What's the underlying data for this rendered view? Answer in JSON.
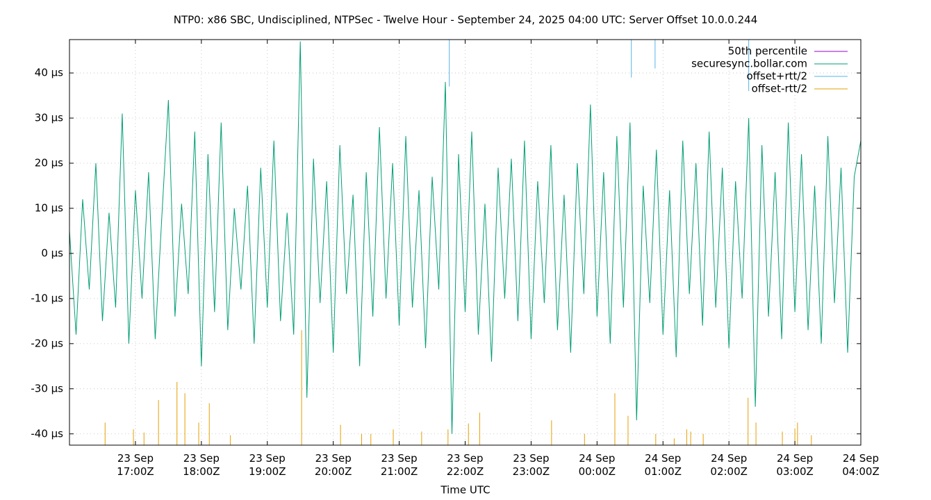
{
  "chart_data": {
    "type": "line",
    "title": "NTP0: x86 SBC, Undisciplined, NTPSec - Twelve Hour - September 24, 2025 04:00 UTC: Server Offset 10.0.0.244",
    "xlabel": "Time UTC",
    "xlim": [
      16,
      28
    ],
    "xticks": [
      {
        "value": 17,
        "label": [
          "23 Sep",
          "17:00Z"
        ]
      },
      {
        "value": 18,
        "label": [
          "23 Sep",
          "18:00Z"
        ]
      },
      {
        "value": 19,
        "label": [
          "23 Sep",
          "19:00Z"
        ]
      },
      {
        "value": 20,
        "label": [
          "23 Sep",
          "20:00Z"
        ]
      },
      {
        "value": 21,
        "label": [
          "23 Sep",
          "21:00Z"
        ]
      },
      {
        "value": 22,
        "label": [
          "23 Sep",
          "22:00Z"
        ]
      },
      {
        "value": 23,
        "label": [
          "23 Sep",
          "23:00Z"
        ]
      },
      {
        "value": 24,
        "label": [
          "24 Sep",
          "00:00Z"
        ]
      },
      {
        "value": 25,
        "label": [
          "24 Sep",
          "01:00Z"
        ]
      },
      {
        "value": 26,
        "label": [
          "24 Sep",
          "02:00Z"
        ]
      },
      {
        "value": 27,
        "label": [
          "24 Sep",
          "03:00Z"
        ]
      },
      {
        "value": 28,
        "label": [
          "24 Sep",
          "04:00Z"
        ]
      }
    ],
    "ylim": [
      -42.5,
      47.4
    ],
    "yticks": [
      {
        "value": -40,
        "label": "-40 µs"
      },
      {
        "value": -30,
        "label": "-30 µs"
      },
      {
        "value": -20,
        "label": "-20 µs"
      },
      {
        "value": -10,
        "label": "-10 µs"
      },
      {
        "value": 0,
        "label": "0 µs"
      },
      {
        "value": 10,
        "label": "10 µs"
      },
      {
        "value": 20,
        "label": "20 µs"
      },
      {
        "value": 30,
        "label": "30 µs"
      },
      {
        "value": 40,
        "label": "40 µs"
      }
    ],
    "grid": true,
    "legend": "top-right",
    "series": [
      {
        "name": "50th percentile",
        "color": "#9400d3"
      },
      {
        "name": "securesync.bollar.com",
        "color": "#009e73",
        "style": "line",
        "x": [
          16.0,
          16.1,
          16.2,
          16.3,
          16.4,
          16.5,
          16.6,
          16.7,
          16.8,
          16.9,
          17.0,
          17.1,
          17.2,
          17.3,
          17.4,
          17.5,
          17.6,
          17.7,
          17.8,
          17.9,
          18.0,
          18.1,
          18.2,
          18.3,
          18.4,
          18.5,
          18.6,
          18.7,
          18.8,
          18.9,
          19.0,
          19.1,
          19.2,
          19.3,
          19.4,
          19.5,
          19.6,
          19.7,
          19.8,
          19.9,
          20.0,
          20.1,
          20.2,
          20.3,
          20.4,
          20.5,
          20.6,
          20.7,
          20.8,
          20.9,
          21.0,
          21.1,
          21.2,
          21.3,
          21.4,
          21.5,
          21.6,
          21.7,
          21.8,
          21.9,
          22.0,
          22.1,
          22.2,
          22.3,
          22.4,
          22.5,
          22.6,
          22.7,
          22.8,
          22.9,
          23.0,
          23.1,
          23.2,
          23.3,
          23.4,
          23.5,
          23.6,
          23.7,
          23.8,
          23.9,
          24.0,
          24.1,
          24.2,
          24.3,
          24.4,
          24.5,
          24.6,
          24.7,
          24.8,
          24.9,
          25.0,
          25.1,
          25.2,
          25.3,
          25.4,
          25.5,
          25.6,
          25.7,
          25.8,
          25.9,
          26.0,
          26.1,
          26.2,
          26.3,
          26.4,
          26.5,
          26.6,
          26.7,
          26.8,
          26.9,
          27.0,
          27.1,
          27.2,
          27.3,
          27.4,
          27.5,
          27.6,
          27.7,
          27.8,
          27.9,
          28.0
        ],
        "values": [
          5,
          -18,
          12,
          -8,
          20,
          -15,
          9,
          -12,
          31,
          -20,
          14,
          -10,
          18,
          -19,
          8,
          34,
          -14,
          11,
          -9,
          27,
          -25,
          22,
          -13,
          29,
          -17,
          10,
          -8,
          15,
          -20,
          19,
          -12,
          25,
          -15,
          9,
          -18,
          47,
          -32,
          21,
          -11,
          16,
          -22,
          24,
          -9,
          13,
          -25,
          18,
          -14,
          28,
          -10,
          20,
          -16,
          26,
          -12,
          14,
          -21,
          17,
          -8,
          38,
          -40,
          22,
          -13,
          27,
          -18,
          11,
          -24,
          19,
          -10,
          21,
          -15,
          25,
          -19,
          16,
          -11,
          24,
          -17,
          13,
          -22,
          20,
          -9,
          33,
          -14,
          18,
          -20,
          26,
          -12,
          29,
          -37,
          15,
          -11,
          23,
          -18,
          14,
          -23,
          25,
          -9,
          20,
          -16,
          27,
          -12,
          19,
          -21,
          16,
          -10,
          30,
          -34,
          24,
          -14,
          18,
          -19,
          29,
          -13,
          22,
          -17,
          15,
          -20,
          26,
          -11,
          19,
          -22,
          17,
          25
        ]
      },
      {
        "name": "offset+rtt/2",
        "color": "#56b4e9",
        "style": "impulse",
        "x": [
          21.76,
          24.52,
          24.88,
          26.3
        ],
        "values": [
          37,
          39,
          41,
          36
        ]
      },
      {
        "name": "offset-rtt/2",
        "color": "#e69f00",
        "style": "impulse",
        "x": [
          16.54,
          16.97,
          17.13,
          17.35,
          17.63,
          17.75,
          17.96,
          18.12,
          18.44,
          19.52,
          20.11,
          20.43,
          20.57,
          20.91,
          21.34,
          21.74,
          22.05,
          22.22,
          23.31,
          23.81,
          24.27,
          24.47,
          24.89,
          25.17,
          25.36,
          25.42,
          25.61,
          26.29,
          26.41,
          26.81,
          27.0,
          27.04,
          27.25
        ],
        "values": [
          -37.5,
          -39,
          -39.7,
          -32.5,
          -28.5,
          -31,
          -37.5,
          -33.2,
          -40.3,
          -17,
          -38,
          -40,
          -40,
          -39,
          -39.5,
          -39,
          -37.7,
          -35.3,
          -37,
          -40,
          -31,
          -36,
          -40,
          -41,
          -39,
          -39.5,
          -40,
          -32,
          -37.5,
          -39.5,
          -38.8,
          -37.5,
          -40.3
        ]
      }
    ]
  }
}
